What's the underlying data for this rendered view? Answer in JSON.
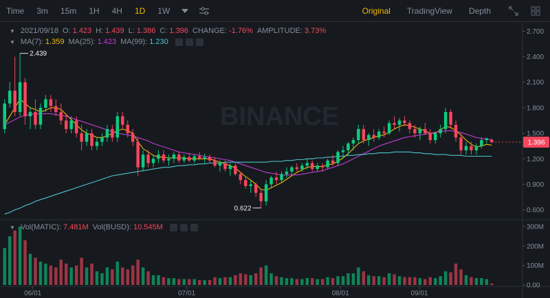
{
  "toolbar": {
    "timeframes": [
      "Time",
      "3m",
      "15m",
      "1H",
      "4H",
      "1D",
      "1W"
    ],
    "active_timeframe": "1D",
    "views": [
      "Original",
      "TradingView",
      "Depth"
    ],
    "active_view": "Original"
  },
  "ohlc": {
    "date": "2021/09/18",
    "open_label": "O:",
    "open": "1.423",
    "high_label": "H:",
    "high": "1.439",
    "low_label": "L:",
    "low": "1.386",
    "close_label": "C:",
    "close": "1.396",
    "change_label": "CHANGE:",
    "change": "-1.76%",
    "amplitude_label": "AMPLITUDE:",
    "amplitude": "3.73%"
  },
  "ma": {
    "ma7_label": "MA(7):",
    "ma7": "1.359",
    "ma25_label": "MA(25):",
    "ma25": "1.423",
    "ma99_label": "MA(99):",
    "ma99": "1.230"
  },
  "vol": {
    "vol_matic_label": "Vol(MATIC):",
    "vol_matic": "7.481M",
    "vol_busd_label": "Vol(BUSD):",
    "vol_busd": "10.545M"
  },
  "watermark": "BINANCE",
  "price_axis": [
    "2.700",
    "2.400",
    "2.100",
    "1.800",
    "1.500",
    "1.200",
    "0.900",
    "0.600"
  ],
  "vol_axis": [
    "300M",
    "200M",
    "100M",
    "0.00"
  ],
  "date_axis": [
    "06/01",
    "07/01",
    "08/01",
    "09/01"
  ],
  "current_price": "1.396",
  "high_marker": "2.439",
  "low_marker": "0.622",
  "colors": {
    "up": "#0ecb81",
    "down": "#f6465d",
    "ma7": "#f0b90b",
    "ma25": "#c13bd3",
    "ma99": "#4fc4cf",
    "accent": "#f0b90b"
  },
  "chart_data": {
    "type": "candlestick",
    "y_range": [
      0.5,
      2.8
    ],
    "volume_range": [
      0,
      300
    ],
    "volume_unit": "M",
    "x_labels": [
      "06/01",
      "07/01",
      "08/01",
      "09/01"
    ],
    "candles": [
      [
        1.55,
        1.9,
        1.5,
        1.85,
        "up",
        190
      ],
      [
        1.85,
        2.1,
        1.8,
        2.0,
        "up",
        250
      ],
      [
        2.0,
        2.4,
        1.7,
        1.75,
        "down",
        280
      ],
      [
        1.75,
        2.439,
        1.7,
        2.1,
        "up",
        300
      ],
      [
        2.1,
        2.15,
        1.6,
        1.7,
        "down",
        230
      ],
      [
        1.7,
        1.8,
        1.55,
        1.75,
        "up",
        160
      ],
      [
        1.75,
        1.9,
        1.55,
        1.6,
        "down",
        140
      ],
      [
        1.6,
        1.85,
        1.55,
        1.8,
        "up",
        120
      ],
      [
        1.8,
        1.95,
        1.75,
        1.9,
        "up",
        110
      ],
      [
        1.9,
        1.95,
        1.75,
        1.82,
        "down",
        100
      ],
      [
        1.82,
        1.9,
        1.7,
        1.75,
        "down",
        90
      ],
      [
        1.75,
        1.85,
        1.6,
        1.65,
        "down",
        130
      ],
      [
        1.65,
        1.72,
        1.5,
        1.55,
        "down",
        110
      ],
      [
        1.55,
        1.7,
        1.5,
        1.65,
        "up",
        90
      ],
      [
        1.65,
        1.7,
        1.45,
        1.5,
        "down",
        100
      ],
      [
        1.5,
        1.6,
        1.3,
        1.4,
        "down",
        140
      ],
      [
        1.4,
        1.55,
        1.35,
        1.5,
        "up",
        90
      ],
      [
        1.5,
        1.55,
        1.3,
        1.35,
        "down",
        110
      ],
      [
        1.35,
        1.45,
        1.3,
        1.4,
        "up",
        70
      ],
      [
        1.4,
        1.5,
        1.35,
        1.45,
        "up",
        60
      ],
      [
        1.45,
        1.6,
        1.4,
        1.55,
        "up",
        90
      ],
      [
        1.55,
        1.6,
        1.4,
        1.45,
        "down",
        80
      ],
      [
        1.45,
        1.75,
        1.4,
        1.7,
        "up",
        120
      ],
      [
        1.7,
        1.75,
        1.55,
        1.6,
        "down",
        90
      ],
      [
        1.6,
        1.65,
        1.45,
        1.5,
        "down",
        80
      ],
      [
        1.5,
        1.55,
        1.35,
        1.4,
        "down",
        100
      ],
      [
        1.4,
        1.45,
        1.0,
        1.1,
        "down",
        130
      ],
      [
        1.1,
        1.3,
        1.05,
        1.25,
        "up",
        90
      ],
      [
        1.25,
        1.3,
        1.1,
        1.15,
        "down",
        70
      ],
      [
        1.15,
        1.25,
        1.1,
        1.2,
        "up",
        50
      ],
      [
        1.2,
        1.3,
        1.15,
        1.25,
        "up",
        50
      ],
      [
        1.25,
        1.3,
        1.15,
        1.18,
        "down",
        40
      ],
      [
        1.18,
        1.25,
        1.12,
        1.2,
        "up",
        35
      ],
      [
        1.2,
        1.28,
        1.15,
        1.25,
        "up",
        35
      ],
      [
        1.25,
        1.28,
        1.15,
        1.18,
        "down",
        30
      ],
      [
        1.18,
        1.25,
        1.15,
        1.22,
        "up",
        30
      ],
      [
        1.22,
        1.27,
        1.16,
        1.18,
        "down",
        30
      ],
      [
        1.18,
        1.25,
        1.15,
        1.23,
        "up",
        30
      ],
      [
        1.23,
        1.28,
        1.18,
        1.2,
        "down",
        25
      ],
      [
        1.2,
        1.26,
        1.15,
        1.22,
        "up",
        25
      ],
      [
        1.22,
        1.25,
        1.15,
        1.18,
        "down",
        25
      ],
      [
        1.18,
        1.22,
        1.1,
        1.12,
        "down",
        40
      ],
      [
        1.12,
        1.18,
        1.05,
        1.15,
        "up",
        35
      ],
      [
        1.15,
        1.18,
        1.05,
        1.08,
        "down",
        40
      ],
      [
        1.08,
        1.15,
        1.0,
        1.12,
        "up",
        40
      ],
      [
        1.12,
        1.15,
        1.0,
        1.02,
        "down",
        50
      ],
      [
        1.02,
        1.05,
        0.9,
        0.95,
        "down",
        60
      ],
      [
        0.95,
        1.0,
        0.85,
        0.88,
        "down",
        55
      ],
      [
        0.88,
        0.95,
        0.8,
        0.9,
        "up",
        50
      ],
      [
        0.9,
        0.92,
        0.75,
        0.8,
        "down",
        60
      ],
      [
        0.8,
        0.85,
        0.622,
        0.7,
        "down",
        90
      ],
      [
        0.7,
        0.95,
        0.65,
        0.9,
        "up",
        100
      ],
      [
        0.9,
        1.0,
        0.85,
        0.98,
        "up",
        60
      ],
      [
        0.98,
        1.05,
        0.9,
        0.95,
        "down",
        45
      ],
      [
        0.95,
        1.05,
        0.92,
        1.02,
        "up",
        40
      ],
      [
        1.02,
        1.1,
        0.98,
        1.05,
        "up",
        35
      ],
      [
        1.05,
        1.12,
        1.0,
        1.1,
        "up",
        35
      ],
      [
        1.1,
        1.15,
        1.05,
        1.08,
        "down",
        30
      ],
      [
        1.08,
        1.15,
        1.05,
        1.12,
        "up",
        30
      ],
      [
        1.12,
        1.2,
        1.08,
        1.15,
        "up",
        35
      ],
      [
        1.15,
        1.18,
        1.05,
        1.08,
        "down",
        35
      ],
      [
        1.08,
        1.15,
        1.05,
        1.12,
        "up",
        30
      ],
      [
        1.12,
        1.15,
        1.05,
        1.1,
        "down",
        30
      ],
      [
        1.1,
        1.2,
        1.08,
        1.18,
        "up",
        40
      ],
      [
        1.18,
        1.25,
        1.12,
        1.15,
        "down",
        35
      ],
      [
        1.15,
        1.3,
        1.12,
        1.28,
        "up",
        45
      ],
      [
        1.28,
        1.35,
        1.2,
        1.3,
        "up",
        45
      ],
      [
        1.3,
        1.4,
        1.25,
        1.38,
        "up",
        60
      ],
      [
        1.38,
        1.45,
        1.3,
        1.42,
        "up",
        60
      ],
      [
        1.42,
        1.6,
        1.38,
        1.55,
        "up",
        90
      ],
      [
        1.55,
        1.6,
        1.38,
        1.42,
        "down",
        70
      ],
      [
        1.42,
        1.5,
        1.35,
        1.48,
        "up",
        50
      ],
      [
        1.48,
        1.55,
        1.4,
        1.45,
        "down",
        45
      ],
      [
        1.45,
        1.55,
        1.42,
        1.52,
        "up",
        45
      ],
      [
        1.52,
        1.58,
        1.45,
        1.5,
        "down",
        40
      ],
      [
        1.5,
        1.65,
        1.48,
        1.62,
        "up",
        60
      ],
      [
        1.62,
        1.7,
        1.55,
        1.6,
        "down",
        55
      ],
      [
        1.6,
        1.68,
        1.52,
        1.65,
        "up",
        45
      ],
      [
        1.65,
        1.7,
        1.58,
        1.62,
        "down",
        40
      ],
      [
        1.62,
        1.65,
        1.5,
        1.55,
        "down",
        40
      ],
      [
        1.55,
        1.6,
        1.45,
        1.5,
        "down",
        40
      ],
      [
        1.5,
        1.58,
        1.42,
        1.55,
        "up",
        35
      ],
      [
        1.55,
        1.62,
        1.48,
        1.5,
        "down",
        30
      ],
      [
        1.5,
        1.55,
        1.38,
        1.42,
        "down",
        40
      ],
      [
        1.42,
        1.52,
        1.38,
        1.5,
        "up",
        35
      ],
      [
        1.5,
        1.6,
        1.45,
        1.55,
        "up",
        45
      ],
      [
        1.55,
        1.8,
        1.5,
        1.75,
        "up",
        70
      ],
      [
        1.75,
        1.78,
        1.55,
        1.6,
        "down",
        65
      ],
      [
        1.6,
        1.65,
        1.4,
        1.45,
        "down",
        110
      ],
      [
        1.45,
        1.5,
        1.25,
        1.3,
        "down",
        80
      ],
      [
        1.3,
        1.4,
        1.25,
        1.35,
        "up",
        50
      ],
      [
        1.35,
        1.4,
        1.25,
        1.3,
        "down",
        40
      ],
      [
        1.3,
        1.38,
        1.25,
        1.35,
        "up",
        35
      ],
      [
        1.35,
        1.45,
        1.32,
        1.42,
        "up",
        35
      ],
      [
        1.42,
        1.45,
        1.38,
        1.44,
        "up",
        30
      ],
      [
        1.423,
        1.439,
        1.386,
        1.396,
        "down",
        7.481
      ]
    ],
    "series": [
      {
        "name": "MA(7)",
        "values": [
          1.6,
          1.7,
          1.8,
          1.9,
          1.85,
          1.8,
          1.78,
          1.75,
          1.77,
          1.8,
          1.8,
          1.78,
          1.72,
          1.66,
          1.6,
          1.54,
          1.5,
          1.48,
          1.45,
          1.45,
          1.47,
          1.5,
          1.53,
          1.55,
          1.53,
          1.5,
          1.4,
          1.32,
          1.28,
          1.24,
          1.22,
          1.22,
          1.21,
          1.21,
          1.21,
          1.21,
          1.2,
          1.2,
          1.2,
          1.2,
          1.2,
          1.18,
          1.16,
          1.14,
          1.12,
          1.09,
          1.04,
          0.99,
          0.95,
          0.9,
          0.84,
          0.83,
          0.86,
          0.89,
          0.92,
          0.96,
          1.0,
          1.04,
          1.07,
          1.1,
          1.11,
          1.11,
          1.11,
          1.13,
          1.14,
          1.17,
          1.21,
          1.26,
          1.32,
          1.38,
          1.41,
          1.43,
          1.45,
          1.47,
          1.48,
          1.51,
          1.55,
          1.58,
          1.6,
          1.59,
          1.57,
          1.55,
          1.53,
          1.5,
          1.5,
          1.54,
          1.58,
          1.57,
          1.53,
          1.48,
          1.42,
          1.37,
          1.34,
          1.35,
          1.37,
          1.36
        ]
      },
      {
        "name": "MA(25)",
        "values": [
          1.6,
          1.63,
          1.66,
          1.69,
          1.71,
          1.72,
          1.73,
          1.73,
          1.73,
          1.73,
          1.72,
          1.71,
          1.7,
          1.68,
          1.66,
          1.64,
          1.62,
          1.6,
          1.58,
          1.56,
          1.54,
          1.52,
          1.5,
          1.49,
          1.48,
          1.47,
          1.45,
          1.43,
          1.41,
          1.38,
          1.36,
          1.34,
          1.32,
          1.3,
          1.28,
          1.27,
          1.26,
          1.25,
          1.24,
          1.23,
          1.22,
          1.21,
          1.2,
          1.19,
          1.18,
          1.16,
          1.14,
          1.12,
          1.1,
          1.08,
          1.06,
          1.04,
          1.03,
          1.02,
          1.01,
          1.01,
          1.01,
          1.01,
          1.02,
          1.03,
          1.04,
          1.05,
          1.06,
          1.08,
          1.1,
          1.12,
          1.14,
          1.17,
          1.2,
          1.23,
          1.26,
          1.29,
          1.32,
          1.35,
          1.37,
          1.39,
          1.41,
          1.43,
          1.45,
          1.46,
          1.47,
          1.48,
          1.49,
          1.5,
          1.51,
          1.52,
          1.53,
          1.53,
          1.52,
          1.51,
          1.49,
          1.47,
          1.45,
          1.44,
          1.43,
          1.423
        ]
      },
      {
        "name": "MA(99)",
        "values": [
          0.55,
          0.57,
          0.6,
          0.62,
          0.65,
          0.67,
          0.7,
          0.72,
          0.74,
          0.76,
          0.78,
          0.8,
          0.82,
          0.84,
          0.86,
          0.88,
          0.9,
          0.92,
          0.94,
          0.96,
          0.98,
          1.0,
          1.01,
          1.02,
          1.03,
          1.04,
          1.05,
          1.06,
          1.07,
          1.08,
          1.09,
          1.1,
          1.1,
          1.11,
          1.12,
          1.12,
          1.13,
          1.13,
          1.14,
          1.14,
          1.15,
          1.15,
          1.15,
          1.16,
          1.16,
          1.16,
          1.16,
          1.16,
          1.16,
          1.16,
          1.16,
          1.16,
          1.17,
          1.17,
          1.17,
          1.18,
          1.18,
          1.19,
          1.19,
          1.2,
          1.2,
          1.21,
          1.21,
          1.22,
          1.22,
          1.23,
          1.23,
          1.24,
          1.24,
          1.25,
          1.25,
          1.26,
          1.26,
          1.27,
          1.27,
          1.27,
          1.28,
          1.28,
          1.28,
          1.28,
          1.27,
          1.27,
          1.26,
          1.26,
          1.25,
          1.25,
          1.25,
          1.24,
          1.24,
          1.24,
          1.23,
          1.23,
          1.23,
          1.23,
          1.23,
          1.23
        ]
      }
    ]
  }
}
